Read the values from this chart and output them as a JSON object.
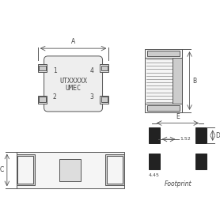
{
  "bg_color": "#ffffff",
  "line_color": "#555555",
  "fill_color": "#eeeeee",
  "fill_light": "#f5f5f5",
  "fill_gray": "#cccccc",
  "fill_dark": "#999999",
  "fill_black": "#222222",
  "text_color": "#444444",
  "title_text1": "UTXXXXX",
  "title_text2": "UMEC",
  "label_A": "A",
  "label_B": "B",
  "label_C": "C",
  "label_D": "D",
  "label_E": "E",
  "label_footprint": "Footprint",
  "label_152": "1.52",
  "label_445": "4.45",
  "pin1": "1",
  "pin2": "2",
  "pin3": "3",
  "pin4": "4"
}
